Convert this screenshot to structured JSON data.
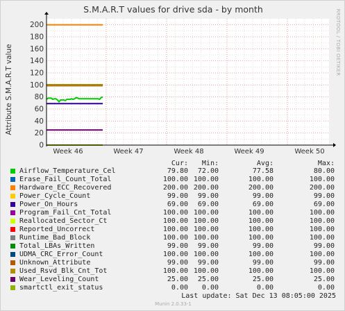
{
  "chart_data": {
    "type": "line",
    "title": "S.M.A.R.T values for drive sda - by month",
    "ylabel": "Attribute S.M.A.R.T value",
    "ylim": [
      0,
      210
    ],
    "y_ticks": [
      0,
      20,
      40,
      60,
      80,
      100,
      120,
      140,
      160,
      180,
      200
    ],
    "x_ticks": [
      "Week 46",
      "Week 47",
      "Week 48",
      "Week 49",
      "Week 50"
    ],
    "grid": true,
    "legend_headers": {
      "cur": "Cur:",
      "min": "Min:",
      "avg": "Avg:",
      "max": "Max:"
    },
    "series": [
      {
        "name": "Airflow_Temperature_Cel",
        "color": "#00cc00",
        "cur": "79.80",
        "min": "72.00",
        "avg": "77.58",
        "max": "80.00",
        "values": [
          76,
          78,
          78,
          78,
          76,
          77,
          77,
          75,
          72,
          75,
          75,
          75,
          74,
          76,
          76,
          76,
          77,
          76,
          77,
          79,
          78,
          77,
          77,
          77,
          77,
          77,
          77,
          77,
          77,
          77,
          77,
          77,
          77,
          77,
          76,
          79,
          79.8
        ]
      },
      {
        "name": "Erase_Fail_Count_Total",
        "color": "#0066b3",
        "cur": "100.00",
        "min": "100.00",
        "avg": "100.00",
        "max": "100.00",
        "values": [
          100,
          100
        ]
      },
      {
        "name": "Hardware_ECC_Recovered",
        "color": "#ff8000",
        "cur": "200.00",
        "min": "200.00",
        "avg": "200.00",
        "max": "200.00",
        "values": [
          200,
          200
        ]
      },
      {
        "name": "Power_Cycle_Count",
        "color": "#ffcc00",
        "cur": "99.00",
        "min": "99.00",
        "avg": "99.00",
        "max": "99.00",
        "values": [
          99,
          99
        ]
      },
      {
        "name": "Power_On_Hours",
        "color": "#330099",
        "cur": "69.00",
        "min": "69.00",
        "avg": "69.00",
        "max": "69.00",
        "values": [
          69,
          69
        ]
      },
      {
        "name": "Program_Fail_Cnt_Total",
        "color": "#990099",
        "cur": "100.00",
        "min": "100.00",
        "avg": "100.00",
        "max": "100.00",
        "values": [
          100,
          100
        ]
      },
      {
        "name": "Reallocated_Sector_Ct",
        "color": "#ccff00",
        "cur": "100.00",
        "min": "100.00",
        "avg": "100.00",
        "max": "100.00",
        "values": [
          100,
          100
        ]
      },
      {
        "name": "Reported_Uncorrect",
        "color": "#ff0000",
        "cur": "100.00",
        "min": "100.00",
        "avg": "100.00",
        "max": "100.00",
        "values": [
          100,
          100
        ]
      },
      {
        "name": "Runtime_Bad_Block",
        "color": "#808080",
        "cur": "100.00",
        "min": "100.00",
        "avg": "100.00",
        "max": "100.00",
        "values": [
          100,
          100
        ]
      },
      {
        "name": "Total_LBAs_Written",
        "color": "#008f00",
        "cur": "99.00",
        "min": "99.00",
        "avg": "99.00",
        "max": "99.00",
        "values": [
          99,
          99
        ]
      },
      {
        "name": "UDMA_CRC_Error_Count",
        "color": "#00487d",
        "cur": "100.00",
        "min": "100.00",
        "avg": "100.00",
        "max": "100.00",
        "values": [
          100,
          100
        ]
      },
      {
        "name": "Unknown_Attribute",
        "color": "#b35a00",
        "cur": "99.00",
        "min": "99.00",
        "avg": "99.00",
        "max": "99.00",
        "values": [
          99,
          99
        ]
      },
      {
        "name": "Used_Rsvd_Blk_Cnt_Tot",
        "color": "#b38f00",
        "cur": "100.00",
        "min": "100.00",
        "avg": "100.00",
        "max": "100.00",
        "values": [
          100,
          100
        ]
      },
      {
        "name": "Wear_Leveling_Count",
        "color": "#6b006b",
        "cur": "25.00",
        "min": "25.00",
        "avg": "25.00",
        "max": "25.00",
        "values": [
          25,
          25
        ]
      },
      {
        "name": "smartctl_exit_status",
        "color": "#8fb300",
        "cur": "0.00",
        "min": "0.00",
        "avg": "0.00",
        "max": "0.00",
        "values": [
          0,
          0
        ]
      }
    ]
  },
  "side_label": "RRDTOOL / TOBI OETIKER",
  "last_update": "Last update:  Sat Dec 13 08:05:00 2025",
  "footer": "Munin 2.0.33-1"
}
